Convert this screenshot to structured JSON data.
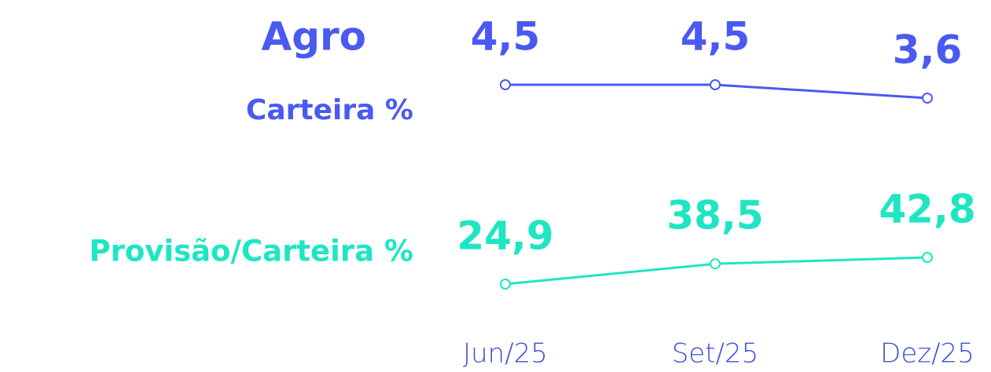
{
  "chart_data": {
    "type": "line",
    "title": "Agro",
    "categories": [
      "Jun/25",
      "Set/25",
      "Dez/25"
    ],
    "series": [
      {
        "name": "Carteira %",
        "color": "#4a5af0",
        "values": [
          4.5,
          4.5,
          3.6
        ],
        "value_labels": [
          "4,5",
          "4,5",
          "3,6"
        ]
      },
      {
        "name": "Provisão/Carteira %",
        "color": "#1ee6c3",
        "values": [
          24.9,
          38.5,
          42.8
        ],
        "value_labels": [
          "24,9",
          "38,5",
          "42,8"
        ]
      }
    ]
  }
}
